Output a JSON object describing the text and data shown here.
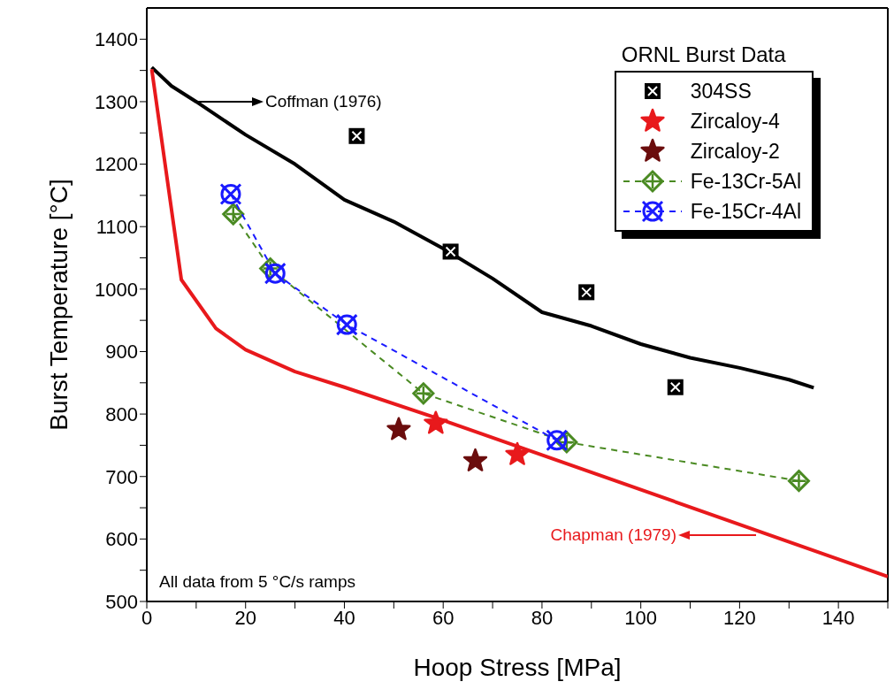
{
  "chart_data": {
    "type": "scatter",
    "xlabel": "Hoop Stress [MPa]",
    "ylabel": "Burst Temperature [°C]",
    "legend_title": "ORNL Burst Data",
    "legend": "top right",
    "grid": false,
    "xlim": [
      0,
      150
    ],
    "xticks": [
      0,
      {
        "value": 10,
        "label": null
      },
      20,
      {
        "value": 30,
        "label": null
      },
      40,
      {
        "value": 50,
        "label": null
      },
      60,
      {
        "value": 70,
        "label": null
      },
      80,
      {
        "value": 90,
        "label": null
      },
      100,
      {
        "value": 110,
        "label": null
      },
      120,
      {
        "value": 130,
        "label": null
      },
      140,
      {
        "value": 150,
        "label": null
      }
    ],
    "ylim": [
      500,
      1450
    ],
    "yticks": [
      500,
      {
        "value": 550,
        "label": null
      },
      600,
      {
        "value": 650,
        "label": null
      },
      700,
      {
        "value": 750,
        "label": null
      },
      800,
      {
        "value": 850,
        "label": null
      },
      900,
      {
        "value": 950,
        "label": null
      },
      1000,
      {
        "value": 1050,
        "label": null
      },
      1100,
      {
        "value": 1150,
        "label": null
      },
      1200,
      {
        "value": 1250,
        "label": null
      },
      1300,
      {
        "value": 1350,
        "label": null
      },
      1400
    ],
    "annotations": [
      "Coffman (1976)",
      "Chapman (1979)",
      "All data from 5 °C/s ramps"
    ],
    "series": [
      {
        "type": "line",
        "color": "#000000",
        "marker": "none",
        "line_style": "solid",
        "x": [
          1,
          5,
          10,
          20,
          30,
          40,
          50,
          60,
          70,
          80,
          90,
          100,
          110,
          120,
          130,
          135
        ],
        "values": [
          1355,
          1325,
          1300,
          1247,
          1200,
          1143,
          1108,
          1065,
          1017,
          963,
          941,
          912,
          890,
          874,
          855,
          842
        ]
      },
      {
        "type": "line",
        "color": "#e8191c",
        "marker": "none",
        "line_style": "solid",
        "x": [
          1,
          7,
          14,
          20,
          30,
          40,
          60,
          150
        ],
        "values": [
          1352,
          1015,
          937,
          903,
          868,
          843,
          790,
          540
        ]
      },
      {
        "name": "304SS",
        "color": "#000000",
        "marker": "square",
        "x": [
          42.5,
          61.5,
          89,
          107
        ],
        "values": [
          1245,
          1060,
          995,
          843
        ]
      },
      {
        "name": "Zircaloy-4",
        "color": "#e8191c",
        "marker": "star",
        "x": [
          58.5,
          75
        ],
        "values": [
          785,
          735
        ]
      },
      {
        "name": "Zircaloy-2",
        "color": "#6b0d0d",
        "marker": "star",
        "x": [
          51,
          66.5
        ],
        "values": [
          775,
          725
        ]
      },
      {
        "name": "Fe-13Cr-5Al",
        "type": "line",
        "color": "#4a8a22",
        "marker": "diamond",
        "line_style": "dashed",
        "x": [
          17.5,
          25,
          56,
          85,
          132
        ],
        "values": [
          1120,
          1033,
          833,
          755,
          693
        ]
      },
      {
        "name": "Fe-15Cr-4Al",
        "type": "line",
        "color": "#1a1aff",
        "marker": "circle",
        "line_style": "dashed",
        "x": [
          17,
          26,
          40.5,
          83
        ],
        "values": [
          1152,
          1025,
          943,
          758
        ]
      }
    ]
  }
}
